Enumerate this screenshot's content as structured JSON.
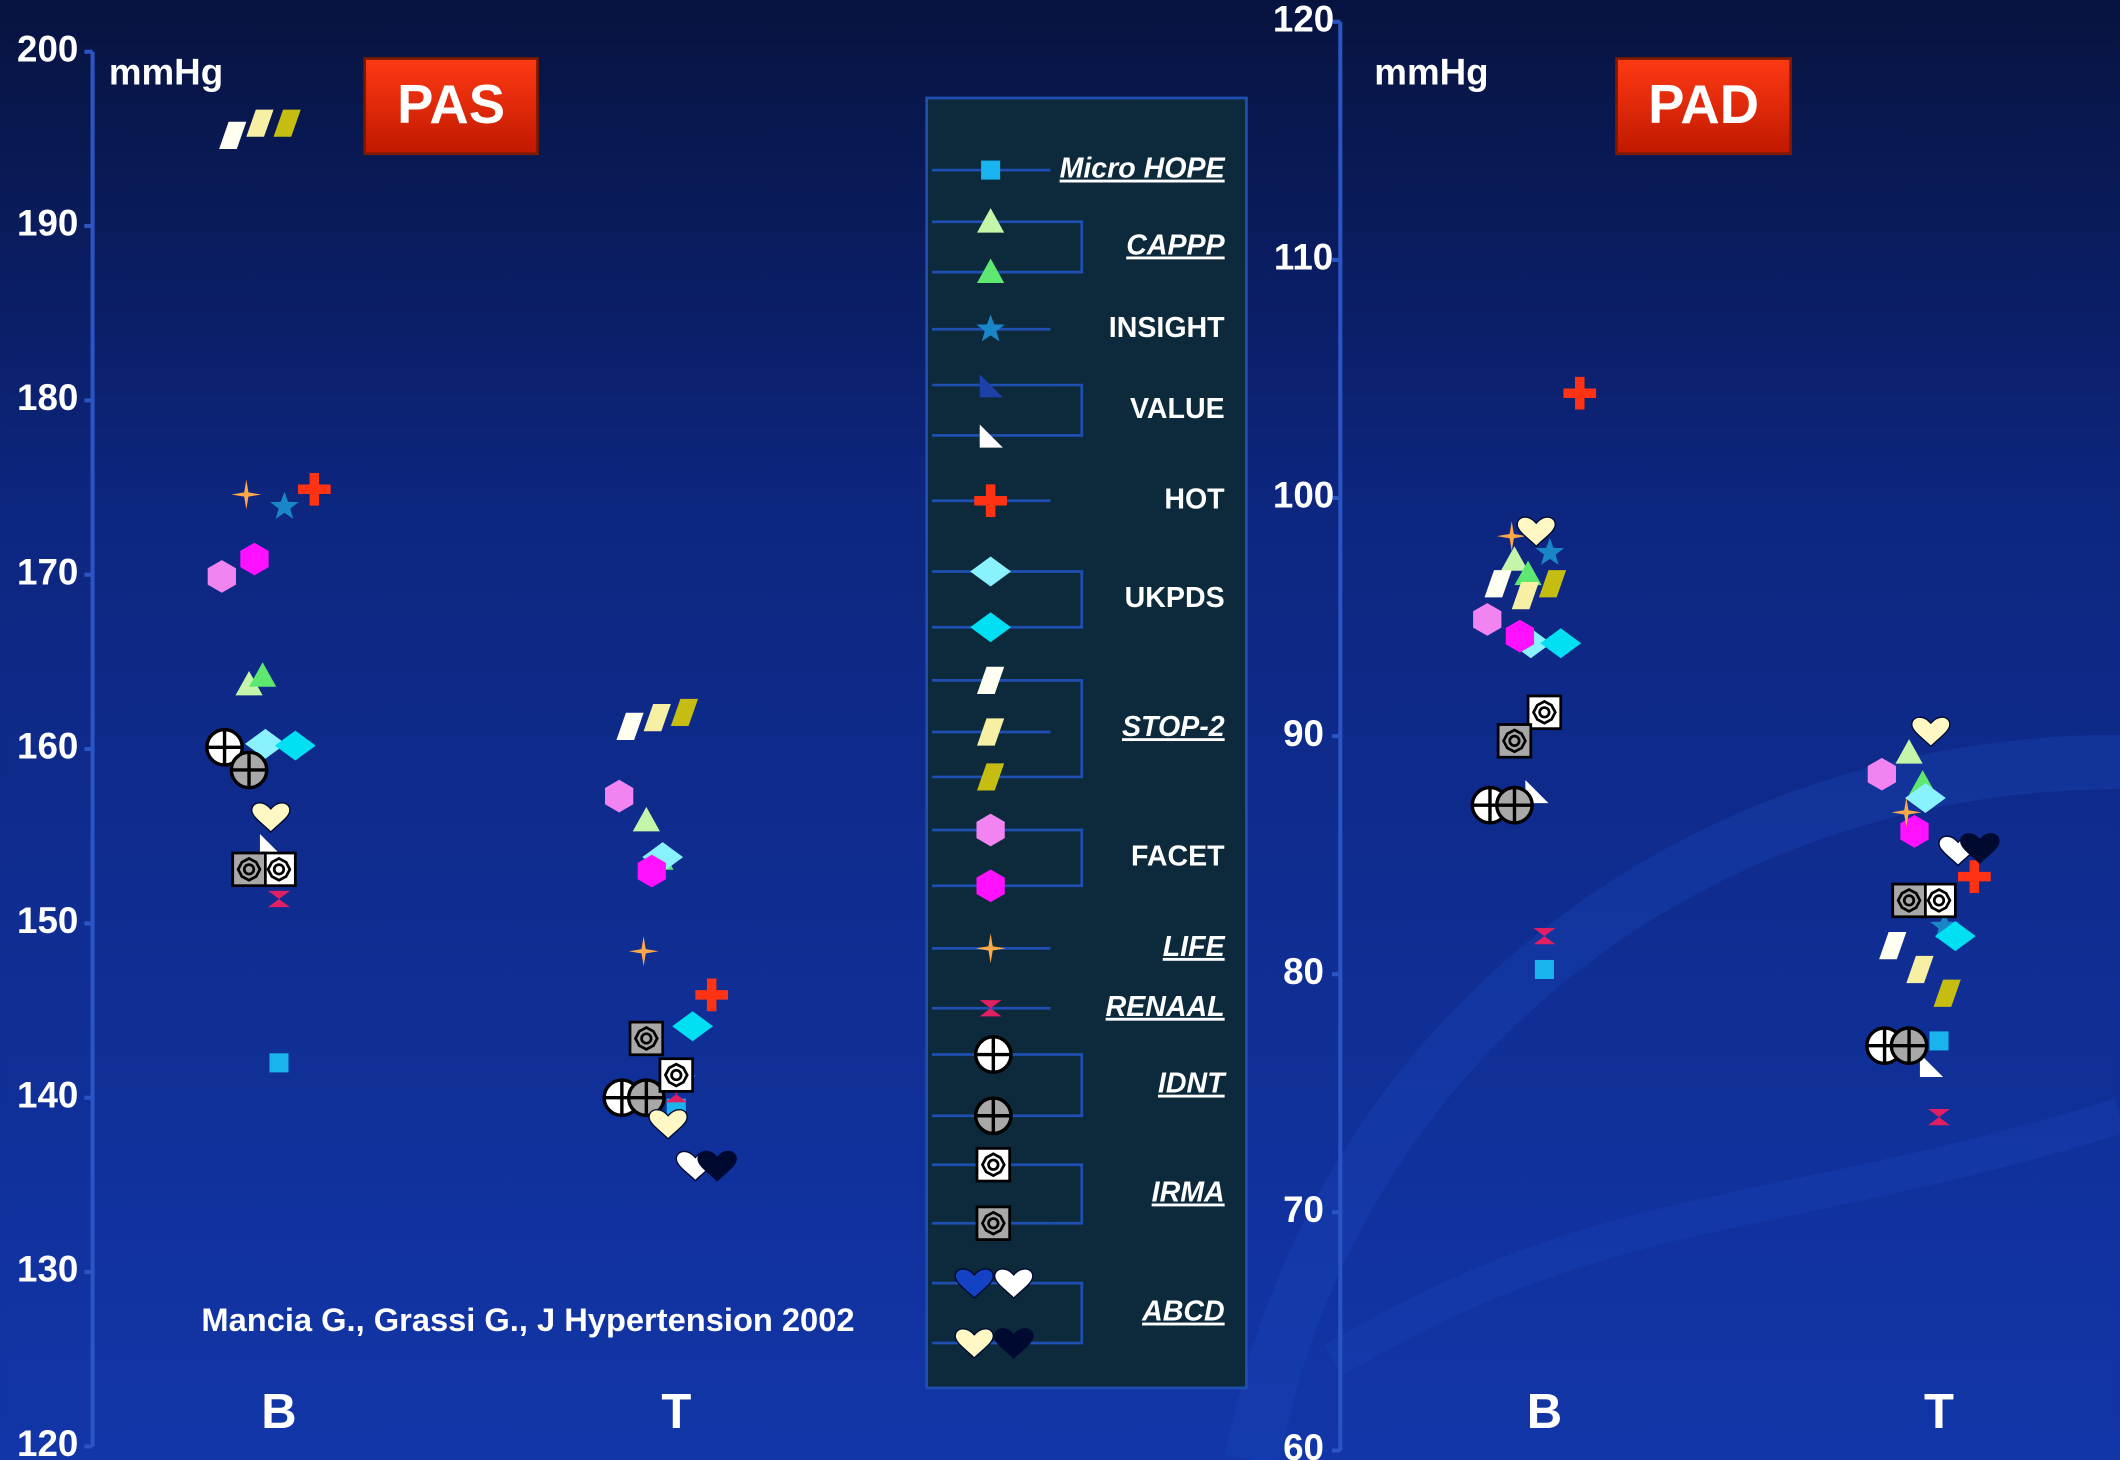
{
  "chart_data": [
    {
      "type": "scatter",
      "title": "PAS",
      "unit": "mmHg",
      "categories": [
        "B",
        "T"
      ],
      "ylim": [
        120,
        200
      ],
      "yticks": [
        120,
        130,
        140,
        150,
        160,
        170,
        180,
        190,
        200
      ],
      "series": [
        {
          "shape": "square",
          "color": "#19b4ee",
          "values": [
            142,
            139.4
          ]
        },
        {
          "shape": "triangle",
          "color": "#c4f5a8",
          "values": [
            163.7,
            155.9
          ]
        },
        {
          "shape": "triangle",
          "color": "#5ee872",
          "values": [
            164.2,
            153.7
          ]
        },
        {
          "shape": "star",
          "color": "#1a86c8",
          "values": [
            173.9,
            141
          ]
        },
        {
          "shape": "rtriangle",
          "color": "#1c3fa8",
          "values": [
            null,
            null
          ]
        },
        {
          "shape": "rtriangle",
          "color": "#ffffff",
          "values": [
            154.5,
            138.9
          ]
        },
        {
          "shape": "cross",
          "color": "#ff3314",
          "values": [
            174.9,
            145.9
          ]
        },
        {
          "shape": "diamond",
          "color": "#8af2ff",
          "values": [
            160.3,
            153.8
          ]
        },
        {
          "shape": "diamond",
          "color": "#00e0f2",
          "values": [
            160.2,
            144.1
          ]
        },
        {
          "shape": "parallelogram",
          "color": "#fffff2",
          "values": [
            195.2,
            161.3
          ]
        },
        {
          "shape": "parallelogram",
          "color": "#f7f0a4",
          "values": [
            195.9,
            161.8
          ]
        },
        {
          "shape": "parallelogram",
          "color": "#c6bd12",
          "values": [
            195.9,
            162.1
          ]
        },
        {
          "shape": "hexagon",
          "color": "#f284f2",
          "values": [
            169.9,
            157.3
          ]
        },
        {
          "shape": "hexagon",
          "color": "#ff10ff",
          "values": [
            170.9,
            153
          ]
        },
        {
          "shape": "sparkle",
          "color": "#ffa848",
          "values": [
            174.6,
            148.4
          ]
        },
        {
          "shape": "bowtie",
          "color": "#e21f63",
          "values": [
            151.4,
            140.2
          ]
        },
        {
          "shape": "circlecross",
          "color": "#ffffff",
          "values": [
            160.1,
            140
          ]
        },
        {
          "shape": "circlecross",
          "color": "#a8a8a8",
          "values": [
            158.8,
            140
          ]
        },
        {
          "shape": "octsquare",
          "color": "#ffffff",
          "values": [
            153.1,
            141.3
          ]
        },
        {
          "shape": "octsquare",
          "color": "#a8a8a8",
          "values": [
            153.1,
            143.4
          ]
        },
        {
          "shape": "heart",
          "color": "#1442c4",
          "values": [
            null,
            null
          ]
        },
        {
          "shape": "heart",
          "color": "#ffffff",
          "values": [
            null,
            136.1
          ]
        },
        {
          "shape": "heart",
          "color": "#fff8c4",
          "values": [
            156.1,
            138.5
          ]
        },
        {
          "shape": "heart",
          "color": "#000a30",
          "values": [
            null,
            136.1
          ]
        }
      ]
    },
    {
      "type": "scatter",
      "title": "PAD",
      "unit": "mmHg",
      "categories": [
        "B",
        "T"
      ],
      "ylim": [
        60,
        120
      ],
      "yticks": [
        60,
        70,
        80,
        90,
        100,
        110,
        120
      ],
      "series": [
        {
          "shape": "square",
          "color": "#19b4ee",
          "values": [
            80.2,
            77.2
          ]
        },
        {
          "shape": "triangle",
          "color": "#c4f5a8",
          "values": [
            97.4,
            89.3
          ]
        },
        {
          "shape": "triangle",
          "color": "#5ee872",
          "values": [
            96.8,
            88
          ]
        },
        {
          "shape": "star",
          "color": "#1a86c8",
          "values": [
            97.7,
            82
          ]
        },
        {
          "shape": "rtriangle",
          "color": "#1c3fa8",
          "values": [
            null,
            null
          ]
        },
        {
          "shape": "rtriangle",
          "color": "#ffffff",
          "values": [
            87.7,
            76.2
          ]
        },
        {
          "shape": "cross",
          "color": "#ff3314",
          "values": [
            104.4,
            84.1
          ]
        },
        {
          "shape": "diamond",
          "color": "#8af2ff",
          "values": [
            93.9,
            87.4
          ]
        },
        {
          "shape": "diamond",
          "color": "#00e0f2",
          "values": [
            93.9,
            81.6
          ]
        },
        {
          "shape": "parallelogram",
          "color": "#fffff2",
          "values": [
            96.4,
            81.2
          ]
        },
        {
          "shape": "parallelogram",
          "color": "#f7f0a4",
          "values": [
            95.9,
            80.2
          ]
        },
        {
          "shape": "parallelogram",
          "color": "#c6bd12",
          "values": [
            96.4,
            79.2
          ]
        },
        {
          "shape": "hexagon",
          "color": "#f284f2",
          "values": [
            94.9,
            88.4
          ]
        },
        {
          "shape": "hexagon",
          "color": "#ff10ff",
          "values": [
            94.2,
            86
          ]
        },
        {
          "shape": "sparkle",
          "color": "#ffa848",
          "values": [
            98.4,
            86.8
          ]
        },
        {
          "shape": "bowtie",
          "color": "#e21f63",
          "values": [
            81.6,
            74
          ]
        },
        {
          "shape": "circlecross",
          "color": "#ffffff",
          "values": [
            87.1,
            77
          ]
        },
        {
          "shape": "circlecross",
          "color": "#a8a8a8",
          "values": [
            87.1,
            77
          ]
        },
        {
          "shape": "octsquare",
          "color": "#ffffff",
          "values": [
            91,
            83.1
          ]
        },
        {
          "shape": "octsquare",
          "color": "#a8a8a8",
          "values": [
            89.8,
            83.1
          ]
        },
        {
          "shape": "heart",
          "color": "#1442c4",
          "values": [
            null,
            null
          ]
        },
        {
          "shape": "heart",
          "color": "#ffffff",
          "values": [
            null,
            85.2
          ]
        },
        {
          "shape": "heart",
          "color": "#fff8c4",
          "values": [
            98.6,
            90.2
          ]
        },
        {
          "shape": "heart",
          "color": "#000a30",
          "values": [
            null,
            85.3
          ]
        }
      ]
    }
  ],
  "legend": {
    "entries": [
      {
        "label": "Micro HOPE",
        "emphasis": true,
        "markers": [
          {
            "shape": "square",
            "color": "#19b4ee"
          }
        ]
      },
      {
        "label": "CAPPP",
        "emphasis": true,
        "markers": [
          {
            "shape": "triangle",
            "color": "#c4f5a8"
          },
          {
            "shape": "triangle",
            "color": "#5ee872"
          }
        ]
      },
      {
        "label": "INSIGHT",
        "emphasis": false,
        "markers": [
          {
            "shape": "star",
            "color": "#1a86c8"
          }
        ]
      },
      {
        "label": "VALUE",
        "emphasis": false,
        "markers": [
          {
            "shape": "rtriangle",
            "color": "#1c3fa8"
          },
          {
            "shape": "rtriangle",
            "color": "#ffffff"
          }
        ]
      },
      {
        "label": "HOT",
        "emphasis": false,
        "markers": [
          {
            "shape": "cross",
            "color": "#ff3314"
          }
        ]
      },
      {
        "label": "UKPDS",
        "emphasis": false,
        "markers": [
          {
            "shape": "diamond",
            "color": "#8af2ff"
          },
          {
            "shape": "diamond",
            "color": "#00e0f2"
          }
        ]
      },
      {
        "label": "STOP-2",
        "emphasis": true,
        "markers": [
          {
            "shape": "parallelogram",
            "color": "#fffff2"
          },
          {
            "shape": "parallelogram",
            "color": "#f7f0a4"
          },
          {
            "shape": "parallelogram",
            "color": "#c6bd12"
          }
        ]
      },
      {
        "label": "FACET",
        "emphasis": false,
        "markers": [
          {
            "shape": "hexagon",
            "color": "#f284f2"
          },
          {
            "shape": "hexagon",
            "color": "#ff10ff"
          }
        ]
      },
      {
        "label": "LIFE",
        "emphasis": true,
        "markers": [
          {
            "shape": "sparkle",
            "color": "#ffa848"
          }
        ]
      },
      {
        "label": "RENAAL",
        "emphasis": true,
        "markers": [
          {
            "shape": "bowtie",
            "color": "#e21f63"
          }
        ]
      },
      {
        "label": "IDNT",
        "emphasis": true,
        "markers": [
          {
            "shape": "circlecross",
            "color": "#ffffff"
          },
          {
            "shape": "circlecross",
            "color": "#a8a8a8"
          }
        ]
      },
      {
        "label": "IRMA",
        "emphasis": true,
        "markers": [
          {
            "shape": "octsquare",
            "color": "#ffffff"
          },
          {
            "shape": "octsquare",
            "color": "#a8a8a8"
          }
        ]
      },
      {
        "label": "ABCD",
        "emphasis": true,
        "markers": [
          {
            "shape": "heart",
            "color": "#1442c4"
          },
          {
            "shape": "heart",
            "color": "#ffffff"
          },
          {
            "shape": "heart",
            "color": "#fff8c4"
          },
          {
            "shape": "heart",
            "color": "#000a30"
          }
        ]
      }
    ]
  },
  "citation": "Mancia G., Grassi G.,  J Hypertension 2002"
}
